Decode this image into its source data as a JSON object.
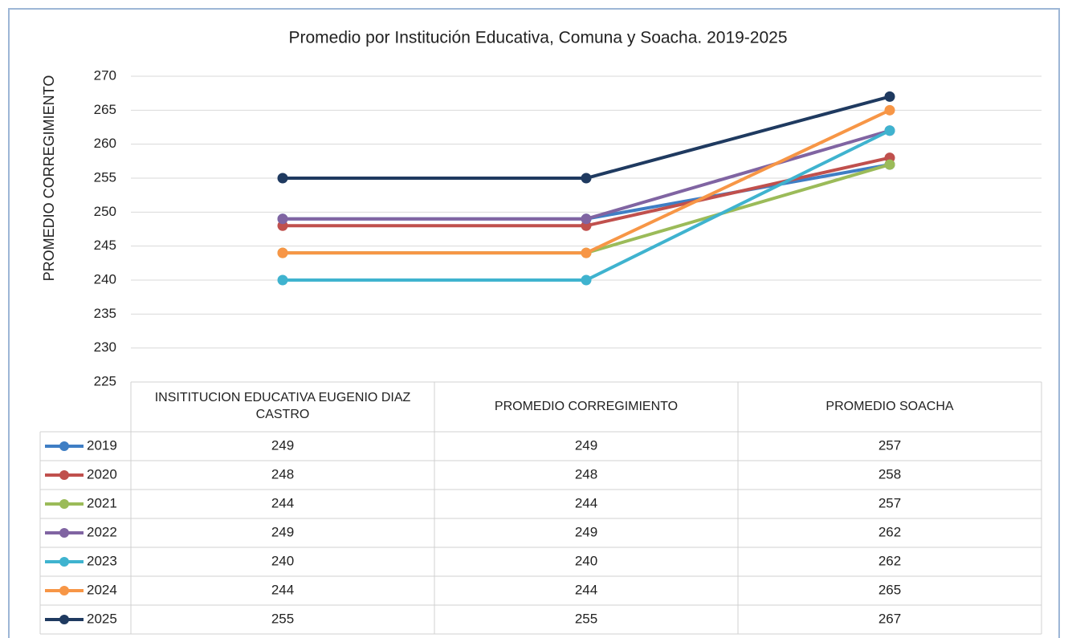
{
  "chart_data": {
    "type": "line",
    "title": "Promedio por  Institución Educativa, Comuna y Soacha. 2019-2025",
    "y_label": "PROMEDIO CORREGIMIENTO",
    "categories": [
      "INSITITUCION EDUCATIVA EUGENIO DIAZ CASTRO",
      "PROMEDIO CORREGIMIENTO",
      "PROMEDIO SOACHA"
    ],
    "ylim": [
      225,
      270
    ],
    "yticks": [
      225,
      230,
      235,
      240,
      245,
      250,
      255,
      260,
      265,
      270
    ],
    "grid": true,
    "series": [
      {
        "name": "2019",
        "color": "#3f7ec4",
        "values": [
          249,
          249,
          257
        ]
      },
      {
        "name": "2020",
        "color": "#c0504d",
        "values": [
          248,
          248,
          258
        ]
      },
      {
        "name": "2021",
        "color": "#9bbb59",
        "values": [
          244,
          244,
          257
        ]
      },
      {
        "name": "2022",
        "color": "#8064a2",
        "values": [
          249,
          249,
          262
        ]
      },
      {
        "name": "2023",
        "color": "#3fb3cf",
        "values": [
          240,
          240,
          262
        ]
      },
      {
        "name": "2024",
        "color": "#f79646",
        "values": [
          244,
          244,
          265
        ]
      },
      {
        "name": "2025",
        "color": "#1f3a60",
        "values": [
          255,
          255,
          267
        ]
      }
    ]
  }
}
